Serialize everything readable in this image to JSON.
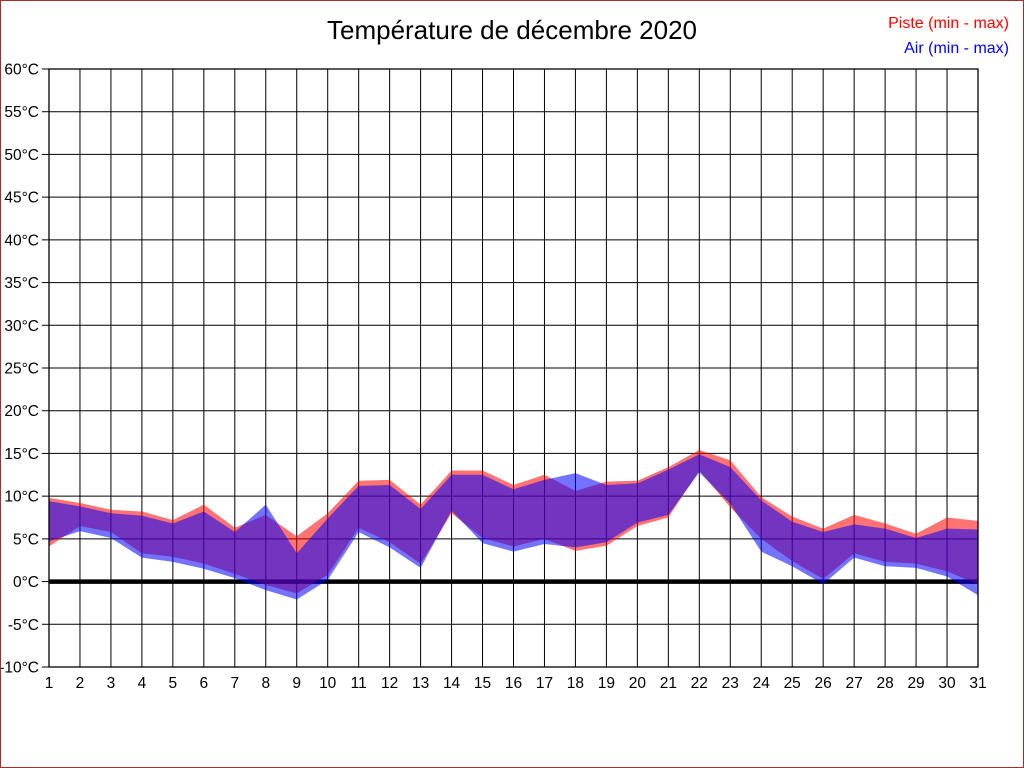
{
  "title": "Température de décembre 2020",
  "legend": [
    {
      "label": "Piste (min - max)",
      "color": "#ff0000"
    },
    {
      "label": "Air (min - max)",
      "color": "#0000ff"
    }
  ],
  "colors": {
    "outer_border": "#993333",
    "grid": "#000000",
    "zero_line": "#000000",
    "piste_band": "#ff0000",
    "air_band": "#0000ff",
    "band_opacity": 0.55
  },
  "chart_data": {
    "type": "area",
    "title": "Température de décembre 2020",
    "x": [
      1,
      2,
      3,
      4,
      5,
      6,
      7,
      8,
      9,
      10,
      11,
      12,
      13,
      14,
      15,
      16,
      17,
      18,
      19,
      20,
      21,
      22,
      23,
      24,
      25,
      26,
      27,
      28,
      29,
      30,
      31
    ],
    "x_labels": [
      "1",
      "2",
      "3",
      "4",
      "5",
      "6",
      "7",
      "8",
      "9",
      "10",
      "11",
      "12",
      "13",
      "14",
      "15",
      "16",
      "17",
      "18",
      "19",
      "20",
      "21",
      "22",
      "23",
      "24",
      "25",
      "26",
      "27",
      "28",
      "29",
      "30",
      "31"
    ],
    "ylim": [
      -10,
      60
    ],
    "ytick_step": 5,
    "y_labels": [
      "-10°C",
      "-5°C",
      "0°C",
      "5°C",
      "10°C",
      "15°C",
      "20°C",
      "25°C",
      "30°C",
      "35°C",
      "40°C",
      "45°C",
      "50°C",
      "55°C",
      "60°C"
    ],
    "grid": true,
    "zero_line_at": 0,
    "legend_position": "top-right",
    "series": [
      {
        "key": "piste",
        "name": "Piste (min - max)",
        "color": "#ff0000",
        "max": [
          9.8,
          9.2,
          8.4,
          8.2,
          7.2,
          9.0,
          6.3,
          7.8,
          5.3,
          8.0,
          11.8,
          11.9,
          9.0,
          13.0,
          13.0,
          11.3,
          12.5,
          10.6,
          11.7,
          11.8,
          13.4,
          15.4,
          14.2,
          9.9,
          7.6,
          6.2,
          7.8,
          6.8,
          5.6,
          7.5,
          7.1
        ],
        "min": [
          4.1,
          6.5,
          5.8,
          3.3,
          2.9,
          2.1,
          0.9,
          -0.4,
          -1.4,
          0.8,
          6.3,
          4.6,
          2.1,
          8.0,
          5.1,
          4.1,
          5.0,
          3.6,
          4.2,
          6.5,
          7.5,
          13.0,
          8.7,
          5.0,
          2.4,
          0.3,
          3.3,
          2.3,
          2.1,
          1.2,
          -0.3
        ]
      },
      {
        "key": "air",
        "name": "Air (min - max)",
        "color": "#0000ff",
        "max": [
          9.4,
          8.8,
          8.0,
          7.7,
          6.8,
          8.2,
          5.8,
          9.0,
          3.3,
          7.4,
          11.2,
          11.3,
          8.5,
          12.5,
          12.5,
          10.8,
          11.9,
          12.7,
          11.3,
          11.5,
          13.1,
          14.9,
          13.4,
          9.5,
          7.0,
          5.8,
          6.7,
          6.2,
          5.1,
          6.2,
          6.1
        ],
        "min": [
          4.7,
          5.9,
          5.1,
          2.8,
          2.3,
          1.5,
          0.4,
          -1.0,
          -2.1,
          0.2,
          5.8,
          4.0,
          1.6,
          8.3,
          4.5,
          3.5,
          4.4,
          4.0,
          4.6,
          6.9,
          7.8,
          12.8,
          9.1,
          3.5,
          1.8,
          -0.3,
          2.8,
          1.8,
          1.6,
          0.6,
          -1.6
        ]
      }
    ]
  }
}
